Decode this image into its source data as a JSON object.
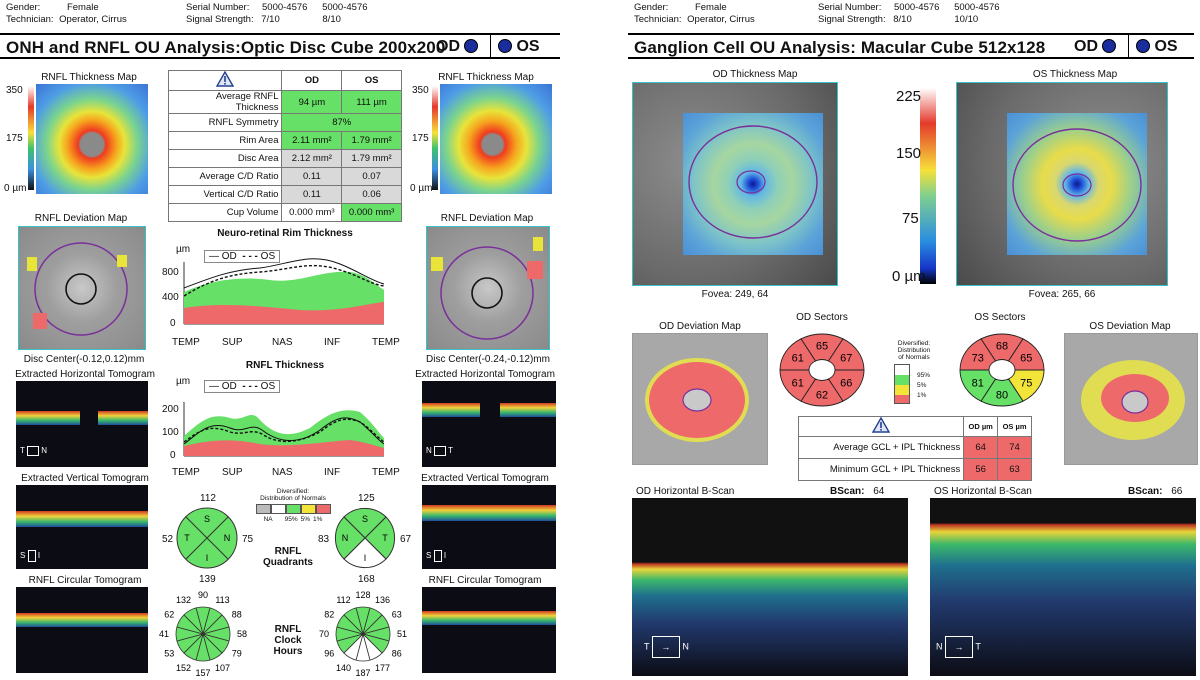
{
  "left": {
    "header": {
      "gender_label": "Gender:",
      "gender": "Female",
      "technician_label": "Technician:",
      "technician": "Operator, Cirrus",
      "serial_label": "Serial Number:",
      "serial_od": "5000-4576",
      "serial_os": "5000-4576",
      "signal_label": "Signal Strength:",
      "signal_od": "7/10",
      "signal_os": "8/10"
    },
    "title": "ONH and RNFL OU Analysis:Optic Disc Cube 200x200",
    "od": "OD",
    "os": "OS",
    "map_title_od": "RNFL Thickness Map",
    "map_title_os": "RNFL Thickness Map",
    "scale": {
      "max": "350",
      "mid": "175",
      "min": "0 µm"
    },
    "table": {
      "head_od": "OD",
      "head_os": "OS",
      "rows": [
        {
          "label": "Average RNFL Thickness",
          "od": "94 µm",
          "os": "111 µm"
        },
        {
          "label": "RNFL Symmetry",
          "both": "87%"
        },
        {
          "label": "Rim Area",
          "od": "2.11 mm²",
          "os": "1.79 mm²"
        },
        {
          "label": "Disc Area",
          "od": "2.12 mm²",
          "os": "1.79 mm²"
        },
        {
          "label": "Average C/D Ratio",
          "od": "0.11",
          "os": "0.07"
        },
        {
          "label": "Vertical C/D Ratio",
          "od": "0.11",
          "os": "0.06"
        },
        {
          "label": "Cup Volume",
          "od": "0.000 mm³",
          "os": "0.000 mm³"
        }
      ]
    },
    "dev_title_od": "RNFL Deviation Map",
    "dev_title_os": "RNFL Deviation Map",
    "disc_center_od": "Disc Center(-0.12,0.12)mm",
    "disc_center_os": "Disc Center(-0.24,-0.12)mm",
    "ext_h_od": "Extracted Horizontal Tomogram",
    "ext_h_os": "Extracted Horizontal Tomogram",
    "ext_v_od": "Extracted Vertical Tomogram",
    "ext_v_os": "Extracted Vertical Tomogram",
    "circ_od": "RNFL Circular Tomogram",
    "circ_os": "RNFL Circular Tomogram",
    "rim_chart": {
      "title": "Neuro-retinal Rim Thickness",
      "unit": "µm",
      "legend_od": "OD",
      "legend_os": "OS",
      "yticks": [
        "800",
        "400",
        "0"
      ]
    },
    "rnfl_chart": {
      "title": "RNFL Thickness",
      "unit": "µm",
      "legend_od": "OD",
      "legend_os": "OS",
      "yticks": [
        "200",
        "100",
        "0"
      ]
    },
    "xticks": [
      "TEMP",
      "SUP",
      "NAS",
      "INF",
      "TEMP"
    ],
    "legend": {
      "title1": "Diversified:",
      "title2": "Distribution of Normals",
      "labels": [
        "NA",
        "95%",
        "5%",
        "1%"
      ]
    },
    "quadrants": {
      "label1": "RNFL",
      "label2": "Quadrants",
      "od": {
        "S": "112",
        "T": "52",
        "N": "75",
        "I": "139"
      },
      "os": {
        "S": "125",
        "T": "83",
        "N": "67",
        "I": "168"
      },
      "letters": {
        "S": "S",
        "T": "T",
        "N": "N",
        "I": "I"
      }
    },
    "clock": {
      "label1": "RNFL",
      "label2": "Clock",
      "label3": "Hours",
      "od": [
        "90",
        "113",
        "88",
        "58",
        "79",
        "107",
        "157",
        "152",
        "53",
        "41",
        "62",
        "132"
      ],
      "os": [
        "128",
        "136",
        "63",
        "51",
        "86",
        "177",
        "187",
        "140",
        "96",
        "70",
        "82",
        "112"
      ]
    },
    "orient": {
      "t": "T",
      "n": "N",
      "s": "S",
      "i": "I"
    }
  },
  "right": {
    "header": {
      "gender_label": "Gender:",
      "gender": "Female",
      "technician_label": "Technician:",
      "technician": "Operator, Cirrus",
      "serial_label": "Serial Number:",
      "serial_od": "5000-4576",
      "serial_os": "5000-4576",
      "signal_label": "Signal Strength:",
      "signal_od": "8/10",
      "signal_os": "10/10"
    },
    "title": "Ganglion Cell OU Analysis: Macular Cube 512x128",
    "od": "OD",
    "os": "OS",
    "map_title_od": "OD Thickness Map",
    "map_title_os": "OS Thickness Map",
    "scale": {
      "v225": "225",
      "v150": "150",
      "v75": "75",
      "v0": "0 µm"
    },
    "fovea_od": "Fovea: 249, 64",
    "fovea_os": "Fovea: 265, 66",
    "dev_title_od": "OD Deviation Map",
    "dev_title_os": "OS Deviation Map",
    "sectors_od_title": "OD Sectors",
    "sectors_os_title": "OS Sectors",
    "sectors_od": [
      "65",
      "67",
      "66",
      "62",
      "61",
      "61"
    ],
    "sectors_os": [
      "68",
      "65",
      "75",
      "80",
      "81",
      "73"
    ],
    "legend": {
      "t1": "Diversified:",
      "t2": "Distribution",
      "t3": "of Normals",
      "labels": [
        "95%",
        "5%",
        "1%"
      ]
    },
    "table": {
      "head_od": "OD µm",
      "head_os": "OS µm",
      "rows": [
        {
          "label": "Average GCL + IPL Thickness",
          "od": "64",
          "os": "74"
        },
        {
          "label": "Minimum GCL + IPL Thickness",
          "od": "56",
          "os": "63"
        }
      ]
    },
    "bscan_od": "OD Horizontal B-Scan",
    "bscan_os": "OS Horizontal B-Scan",
    "bscan_label": "BScan:",
    "bscan_od_val": "64",
    "bscan_os_val": "66",
    "orient": {
      "t": "T",
      "n": "N"
    }
  }
}
